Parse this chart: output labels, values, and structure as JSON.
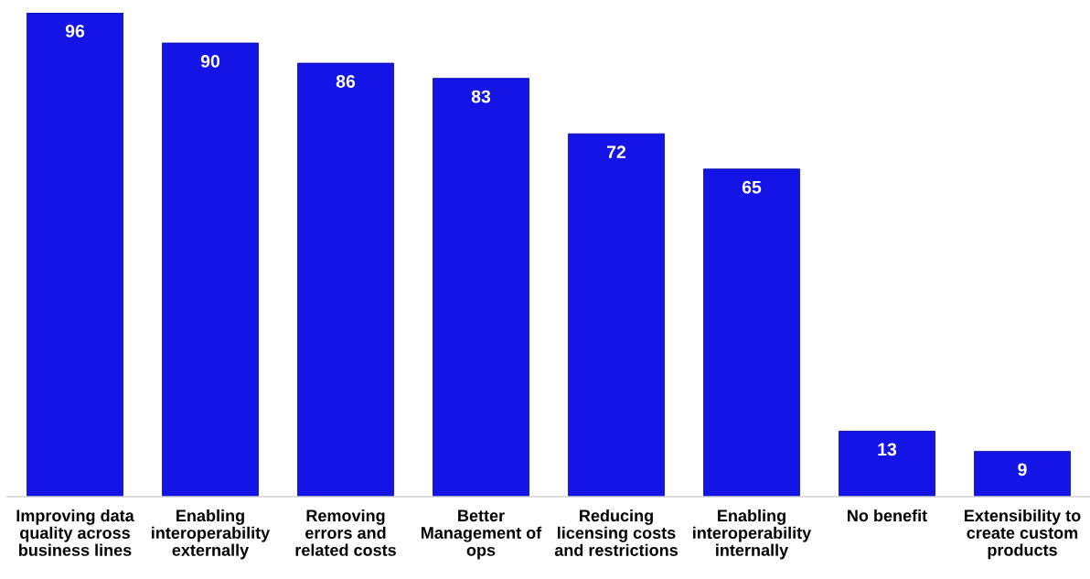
{
  "chart_data": {
    "type": "bar",
    "categories": [
      "Improving data\nquality across\nbusiness lines",
      "Enabling\ninteroperability\nexternally",
      "Removing\nerrors and\nrelated costs",
      "Better\nManagement of\nops",
      "Reducing\nlicensing costs\nand restrictions",
      "Enabling\ninteroperability\ninternally",
      "No benefit",
      "Extensibility to\ncreate custom\nproducts"
    ],
    "values": [
      96,
      90,
      86,
      83,
      72,
      65,
      13,
      9
    ],
    "color": "#1414e6",
    "data_labels": true,
    "tick_labels": "x"
  }
}
